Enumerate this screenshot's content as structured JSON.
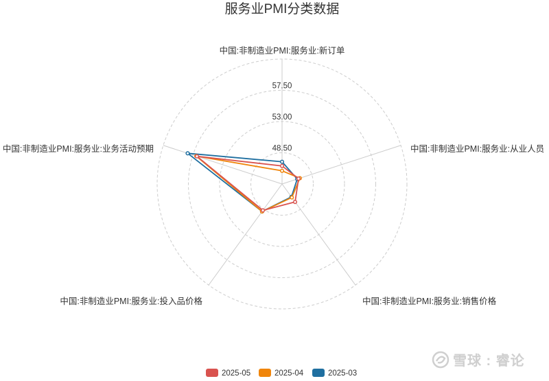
{
  "chart_data": {
    "type": "radar",
    "title": "服务业PMI分类数据",
    "indicators": [
      "中国:非制造业PMI:服务业:新订单",
      "中国:非制造业PMI:服务业:从业人员",
      "中国:非制造业PMI:服务业:销售价格",
      "中国:非制造业PMI:服务业:投入品价格",
      "中国:非制造业PMI:服务业:业务活动预期"
    ],
    "radial_min": 44,
    "radial_max": 62,
    "ring_labels": [
      "48.50",
      "53.00",
      "57.50"
    ],
    "ring_values": [
      48.5,
      53.0,
      57.5
    ],
    "ring_count": 4,
    "grid": true,
    "legend_position": "bottom-center",
    "series": [
      {
        "name": "2025-05",
        "color": "#d9534f",
        "values": [
          46.6,
          46.5,
          47.2,
          48.7,
          56.9
        ]
      },
      {
        "name": "2025-04",
        "color": "#f0850a",
        "values": [
          45.9,
          46.7,
          46.4,
          48.9,
          57.0
        ]
      },
      {
        "name": "2025-03",
        "color": "#1f6fa0",
        "values": [
          47.2,
          46.3,
          46.3,
          48.9,
          58.3
        ]
      }
    ]
  },
  "watermark": {
    "text": "雪球 : 睿论"
  }
}
